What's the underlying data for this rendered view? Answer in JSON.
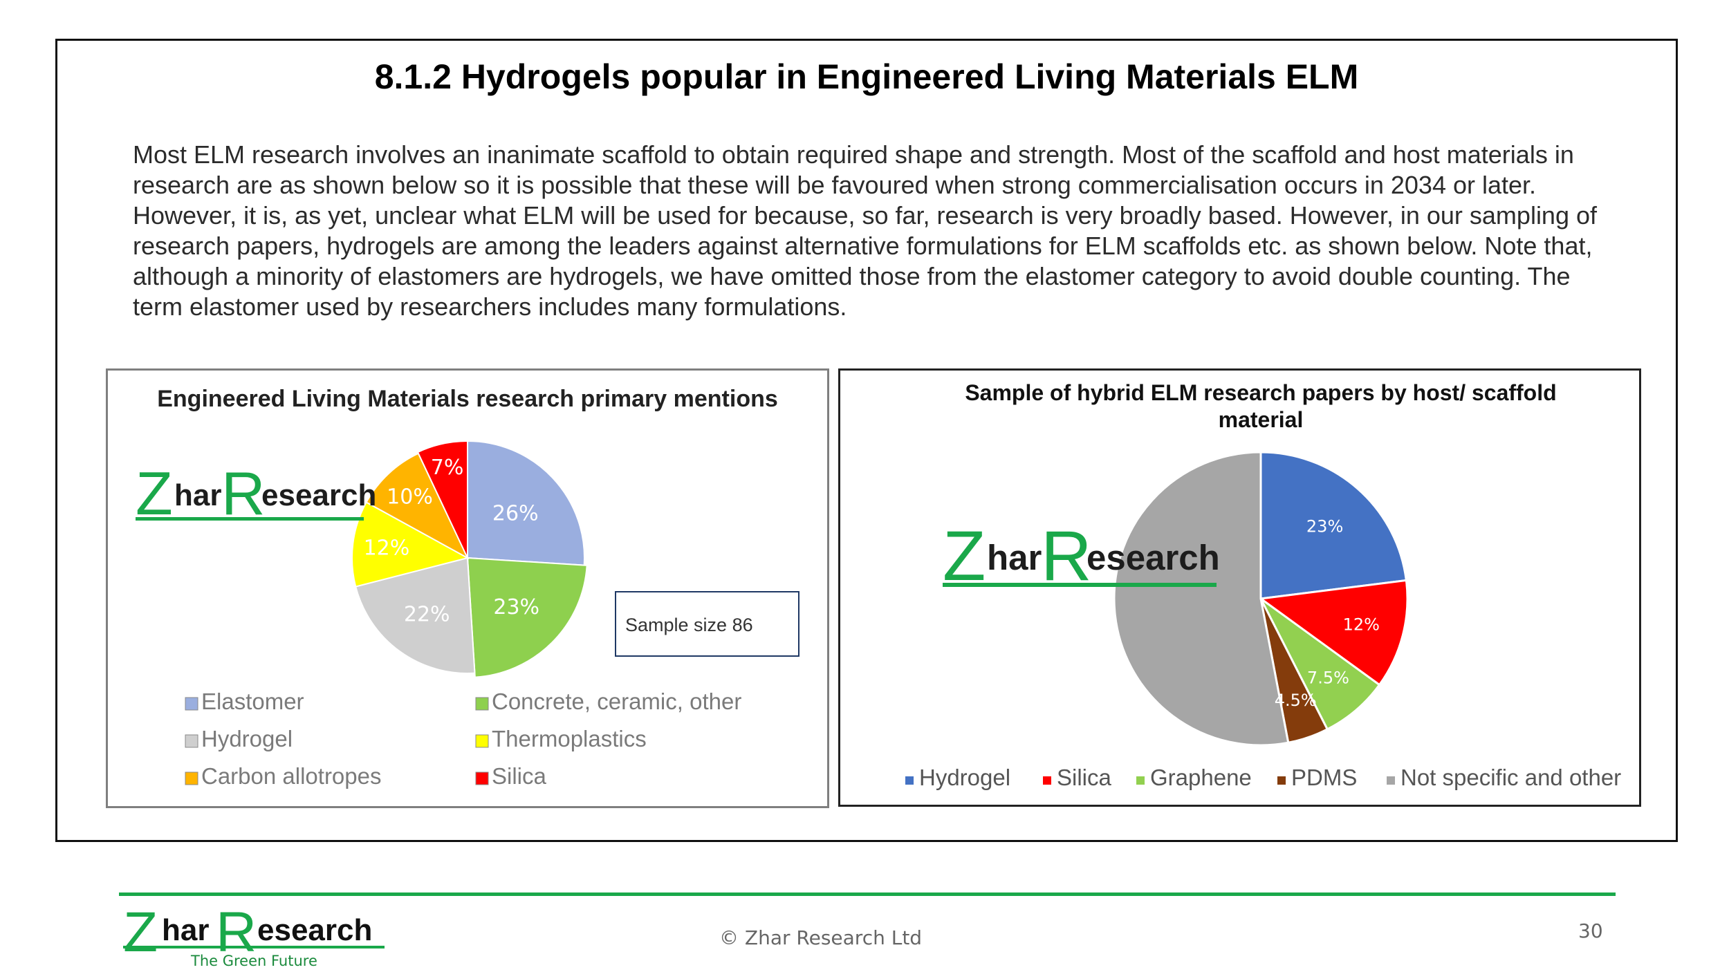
{
  "slide": {
    "title": "8.1.2 Hydrogels popular in Engineered Living Materials ELM",
    "body": "Most ELM research involves an inanimate scaffold to obtain required shape and strength. Most of the scaffold and host materials in research are as shown below so it is possible that these will be favoured when strong commercialisation occurs in 2034 or later. However, it is, as yet, unclear what ELM will be used for because, so far, research is very broadly based. However, in our sampling of research papers, hydrogels are among the leaders against alternative formulations for ELM scaffolds etc. as shown below. Note that, although a minority of elastomers are hydrogels, we have omitted those from the elastomer category to avoid double counting. The term elastomer used by researchers includes many formulations.",
    "copyright": "© Zhar Research Ltd",
    "page_number": "30"
  },
  "logo": {
    "z": "Z",
    "har": "har",
    "r": "R",
    "esearch": "esearch",
    "tagline": "The Green Future"
  },
  "chart_data": [
    {
      "type": "pie",
      "title": "Engineered  Living Materials  research  primary  mentions",
      "note": "Sample size 86",
      "legend_position": "bottom",
      "slices": [
        {
          "label": "Elastomer",
          "value": 26,
          "text": "26%",
          "color": "#9aaedf"
        },
        {
          "label": "Concrete, ceramic, other",
          "value": 23,
          "text": "23%",
          "color": "#8ed04e"
        },
        {
          "label": "Hydrogel",
          "value": 22,
          "text": "22%",
          "color": "#cfcfcf"
        },
        {
          "label": "Thermoplastics",
          "value": 12,
          "text": "12%",
          "color": "#ffff00"
        },
        {
          "label": "Carbon allotropes",
          "value": 10,
          "text": "10%",
          "color": "#ffb400"
        },
        {
          "label": "Silica",
          "value": 7,
          "text": "7%",
          "color": "#ff0000"
        }
      ]
    },
    {
      "type": "pie",
      "title": "Sample of hybrid ELM research papers by host/ scaffold material",
      "legend_position": "bottom",
      "slices": [
        {
          "label": "Hydrogel",
          "value": 23,
          "text": "23%",
          "color": "#4472c4"
        },
        {
          "label": "Silica",
          "value": 12,
          "text": "12%",
          "color": "#ff0000"
        },
        {
          "label": "Graphene",
          "value": 7.5,
          "text": "7.5%",
          "color": "#92d050"
        },
        {
          "label": "PDMS",
          "value": 4.5,
          "text": "4.5%",
          "color": "#843c0c"
        },
        {
          "label": "Not specific and other",
          "value": 53,
          "text": "",
          "color": "#a6a6a6"
        }
      ]
    }
  ]
}
